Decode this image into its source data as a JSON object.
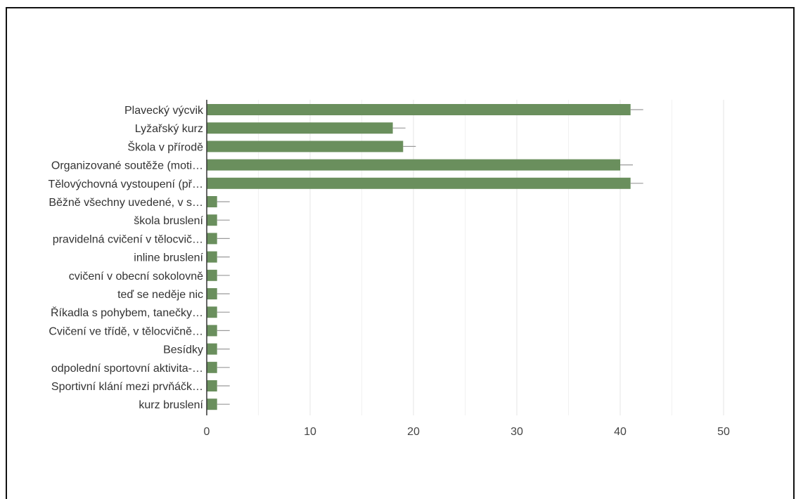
{
  "chart_data": {
    "type": "bar",
    "orientation": "horizontal",
    "categories": [
      "Plavecký výcvik",
      "Lyžařský kurz",
      "Škola v přírodě",
      "Organizované soutěže (moti…",
      "Tělovýchovná vystoupení (př…",
      "Běžně všechny uvedené, v s…",
      "škola bruslení",
      "pravidelná cvičení v tělocvič…",
      "inline bruslení",
      "cvičení v obecní sokolovně",
      "teď se neděje nic",
      "Říkadla s pohybem, tanečky…",
      "Cvičení ve třídě, v tělocvičně…",
      "Besídky",
      "odpolední sportovní aktivita-…",
      "Sportivní klání mezi prvňáčk…",
      "kurz bruslení"
    ],
    "values": [
      41,
      18,
      19,
      40,
      41,
      1,
      1,
      1,
      1,
      1,
      1,
      1,
      1,
      1,
      1,
      1,
      1
    ],
    "xlim": [
      0,
      50
    ],
    "xticks": [
      0,
      10,
      20,
      30,
      40,
      50
    ],
    "grid": true,
    "error_bars": true,
    "bar_color": "#6a8f5d",
    "title": "",
    "xlabel": "",
    "ylabel": ""
  }
}
